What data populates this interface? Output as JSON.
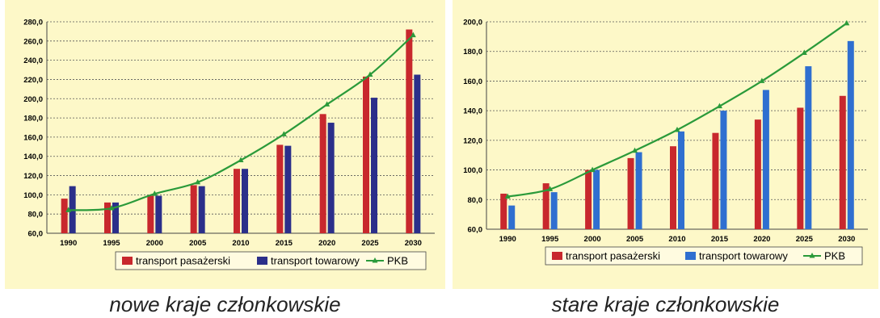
{
  "colors": {
    "background": "#fdf8c8",
    "passenger": "#c8282d",
    "freight_left": "#2b2f8a",
    "freight_right": "#2f6fd0",
    "gdp": "#2a9a3a"
  },
  "captions": {
    "left": "nowe kraje członkowskie",
    "right": "stare kraje członkowskie"
  },
  "chart_data": [
    {
      "type": "bar",
      "categories": [
        "1990",
        "1995",
        "2000",
        "2005",
        "2010",
        "2015",
        "2020",
        "2025",
        "2030"
      ],
      "series": [
        {
          "name": "transport pasażerski",
          "values": [
            96,
            92,
            99,
            110,
            127,
            152,
            184,
            223,
            272
          ]
        },
        {
          "name": "transport towarowy",
          "values": [
            109,
            92,
            99,
            109,
            127,
            151,
            175,
            201,
            225
          ]
        },
        {
          "name": "PKB",
          "type": "line",
          "values": [
            84,
            86,
            101,
            113,
            136,
            163,
            194,
            225,
            266
          ]
        }
      ],
      "ylim": [
        60,
        280
      ],
      "ytick_step": 20,
      "grid": true,
      "legend_position": "bottom"
    },
    {
      "type": "bar",
      "categories": [
        "1990",
        "1995",
        "2000",
        "2005",
        "2010",
        "2015",
        "2020",
        "2025",
        "2030"
      ],
      "series": [
        {
          "name": "transport pasażerski",
          "values": [
            84,
            91,
            100,
            108,
            116,
            125,
            134,
            142,
            150
          ]
        },
        {
          "name": "transport towarowy",
          "values": [
            76,
            85,
            100,
            112,
            126,
            140,
            154,
            170,
            187
          ]
        },
        {
          "name": "PKB",
          "type": "line",
          "values": [
            82,
            87,
            100,
            113,
            127,
            143,
            160,
            179,
            199
          ]
        }
      ],
      "ylim": [
        60,
        200
      ],
      "ytick_step": 20,
      "grid": true,
      "legend_position": "bottom"
    }
  ]
}
